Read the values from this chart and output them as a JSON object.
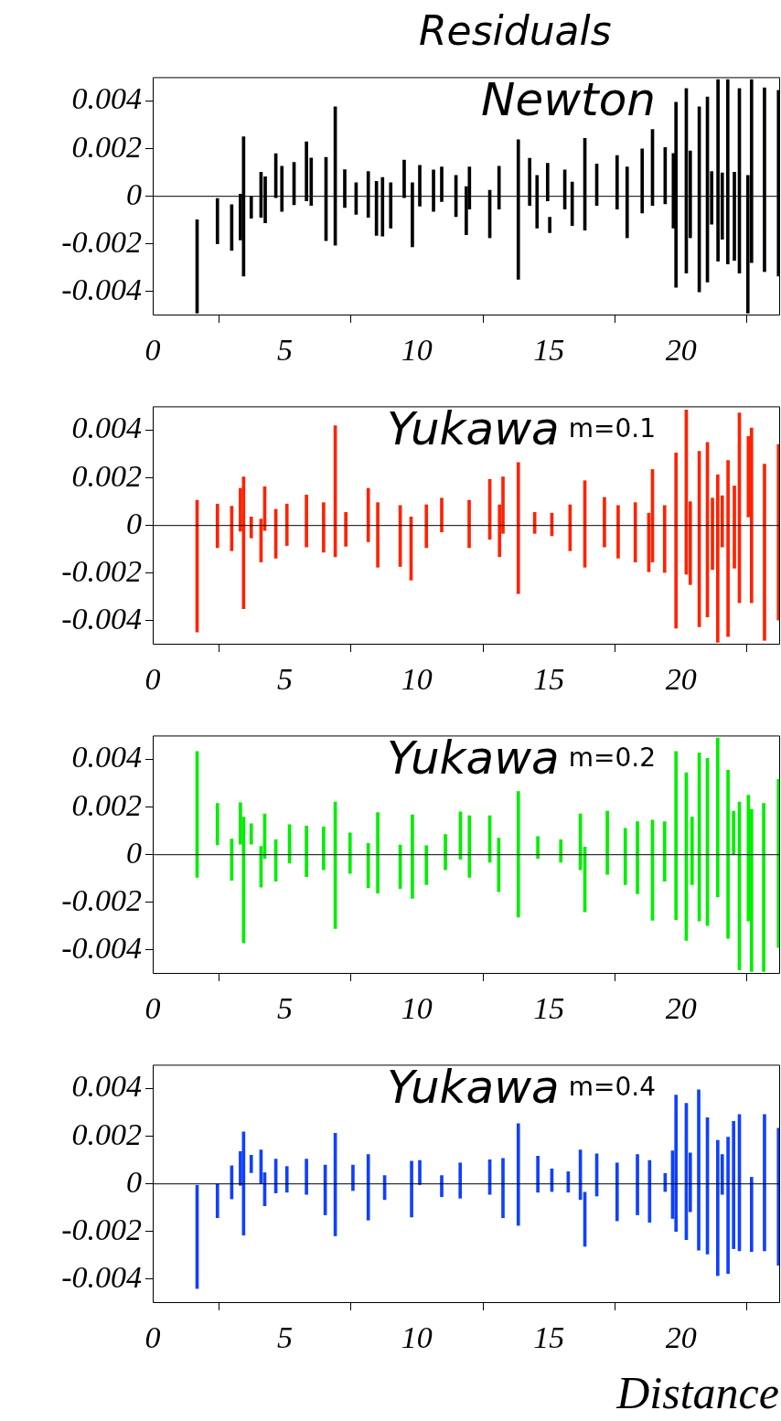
{
  "chart_data": [
    {
      "type": "bar",
      "title": "Residuals",
      "annotations": [
        "Newton"
      ],
      "color": "#000000",
      "xlim": [
        0,
        23.75
      ],
      "xticks": [
        0,
        5,
        10,
        15,
        20
      ],
      "ylim": [
        -0.005,
        0.005
      ],
      "yticks": [
        -0.004,
        -0.002,
        0,
        0.002,
        0.004
      ],
      "ref_lines": [
        {
          "axis": "y",
          "value": 0,
          "color": "#000000"
        }
      ],
      "x": [
        1.68,
        2.45,
        2.99,
        3.32,
        3.44,
        3.73,
        4.1,
        4.26,
        4.66,
        4.89,
        5.35,
        5.82,
        6.0,
        6.56,
        6.91,
        7.27,
        7.7,
        8.16,
        8.47,
        8.7,
        9.01,
        9.52,
        9.83,
        10.11,
        10.63,
        10.94,
        11.48,
        11.87,
        11.99,
        12.76,
        13.11,
        13.84,
        14.27,
        14.55,
        14.95,
        15.03,
        15.6,
        15.88,
        16.36,
        16.81,
        17.58,
        17.96,
        18.53,
        18.92,
        19.4,
        19.71,
        19.81,
        20.2,
        20.35,
        20.69,
        21.0,
        21.16,
        21.4,
        21.56,
        21.77,
        22.02,
        22.21,
        22.53,
        22.67,
        23.16,
        23.69
      ],
      "base": [
        -0.0049,
        -0.00199,
        -0.00227,
        -0.00183,
        -0.00335,
        -0.00092,
        -0.00088,
        -0.00111,
        -6e-05,
        -0.00063,
        -0.00035,
        -0.00019,
        -0.00038,
        -0.00186,
        -0.00205,
        -0.00047,
        -0.00076,
        -0.00088,
        -0.00164,
        -0.00167,
        -0.00133,
        -6e-05,
        -0.00212,
        -0.00041,
        -0.00063,
        -0.00022,
        -0.00085,
        -0.00161,
        -0.00054,
        -0.00174,
        -0.00054,
        -0.00348,
        -0.00038,
        -0.00133,
        -0.00019,
        -0.00152,
        -0.00054,
        -0.00123,
        -0.00142,
        -0.00038,
        -0.00054,
        -0.00174,
        -0.0007,
        -0.00038,
        -0.00032,
        -0.00133,
        -0.00382,
        -0.00322,
        -0.00174,
        -0.00401,
        -0.0036,
        -0.00117,
        -0.00272,
        -0.0018,
        -0.00284,
        -0.00269,
        -0.00322,
        -0.0049,
        -0.00278,
        -0.00316,
        -0.00335
      ],
      "values": [
        0.00392,
        0.0019,
        0.00192,
        0.00192,
        0.00585,
        0.00092,
        0.00189,
        0.00193,
        0.00185,
        0.00189,
        0.00177,
        0.00248,
        0.00199,
        0.0035,
        0.00581,
        0.00159,
        0.00133,
        0.00192,
        0.00227,
        0.00246,
        0.0019,
        0.00158,
        0.00269,
        0.00171,
        0.00174,
        0.00145,
        0.00173,
        0.00202,
        0.00177,
        0.00199,
        0.0018,
        0.00585,
        0.00198,
        0.00221,
        0.00158,
        0.00064,
        0.00165,
        0.00183,
        0.00385,
        0.00174,
        0.00225,
        0.00297,
        0.00269,
        0.00319,
        0.00237,
        0.00313,
        0.00777,
        0.00774,
        0.00364,
        0.00777,
        0.00777,
        0.00221,
        0.00762,
        0.00278,
        0.00774,
        0.0037,
        0.00774,
        0.00578,
        0.00768,
        0.00771,
        0.0078
      ]
    },
    {
      "type": "bar",
      "annotations": [
        "Yukawa",
        "m=0.1"
      ],
      "color": "#ff2200",
      "xlim": [
        0,
        23.75
      ],
      "xticks": [
        0,
        5,
        10,
        15,
        20
      ],
      "ylim": [
        -0.005,
        0.005
      ],
      "yticks": [
        -0.004,
        -0.002,
        0,
        0.002,
        0.004
      ],
      "ref_lines": [
        {
          "axis": "y",
          "value": 0,
          "color": "#000000"
        }
      ],
      "x": [
        1.68,
        2.45,
        2.99,
        3.32,
        3.44,
        3.73,
        4.1,
        4.24,
        4.66,
        5.08,
        5.82,
        6.47,
        6.91,
        7.31,
        8.16,
        8.52,
        9.37,
        9.78,
        10.36,
        10.94,
        11.98,
        12.76,
        13.13,
        13.26,
        13.84,
        14.46,
        15.11,
        15.8,
        16.36,
        17.1,
        17.62,
        18.27,
        18.78,
        18.92,
        19.38,
        19.81,
        20.2,
        20.35,
        20.69,
        21.0,
        21.19,
        21.39,
        21.56,
        21.78,
        22.02,
        22.21,
        22.55,
        22.67,
        23.16,
        23.69
      ],
      "base": [
        -0.00447,
        -0.00093,
        -0.00106,
        -0.00024,
        -0.00349,
        -0.00052,
        -0.00153,
        -0.00021,
        -0.00137,
        -0.00084,
        -0.0009,
        -0.00112,
        -0.00131,
        -0.00087,
        -0.00068,
        -0.00175,
        -0.00172,
        -0.00229,
        -0.00093,
        -0.00027,
        -0.00093,
        -0.00058,
        -0.00131,
        -0.00033,
        -0.00286,
        -0.00033,
        -0.00043,
        -0.00106,
        -0.00175,
        -0.0009,
        -0.00137,
        -0.00153,
        -0.00194,
        -0.00153,
        -0.00197,
        -0.00431,
        -0.00204,
        -0.00248,
        -0.00425,
        -0.00384,
        -0.00185,
        -0.0049,
        -0.0009,
        -0.00466,
        -0.00179,
        -0.00324,
        0.00036,
        -0.00324,
        -0.00482,
        -0.00397
      ],
      "values": [
        0.00553,
        0.00183,
        0.00187,
        0.0018,
        0.00553,
        0.00088,
        0.0018,
        0.00184,
        0.00205,
        0.00174,
        0.00218,
        0.00208,
        0.0055,
        0.00142,
        0.00224,
        0.00271,
        0.00256,
        0.00265,
        0.0018,
        0.00142,
        0.00199,
        0.00252,
        0.00218,
        0.00237,
        0.0055,
        0.00088,
        0.00095,
        0.00193,
        0.00363,
        0.00208,
        0.00221,
        0.00249,
        0.00246,
        0.00388,
        0.00281,
        0.00736,
        0.00689,
        0.00348,
        0.00736,
        0.00733,
        0.003,
        0.00703,
        0.00215,
        0.00739,
        0.00345,
        0.00796,
        0.00338,
        0.00733,
        0.0074,
        0.00737
      ]
    },
    {
      "type": "bar",
      "annotations": [
        "Yukawa",
        "m=0.2"
      ],
      "color": "#00ee00",
      "xlim": [
        0,
        23.75
      ],
      "xticks": [
        0,
        5,
        10,
        15,
        20
      ],
      "ylim": [
        -0.005,
        0.005
      ],
      "yticks": [
        -0.004,
        -0.002,
        0,
        0.002,
        0.004
      ],
      "ref_lines": [
        {
          "axis": "y",
          "value": 0,
          "color": "#000000"
        }
      ],
      "x": [
        1.68,
        2.45,
        2.99,
        3.32,
        3.44,
        3.73,
        4.1,
        4.24,
        4.66,
        5.18,
        5.82,
        6.47,
        6.91,
        7.47,
        8.16,
        8.52,
        9.37,
        9.83,
        10.36,
        11.08,
        11.65,
        11.99,
        12.76,
        13.1,
        13.84,
        14.58,
        15.45,
        16.19,
        16.36,
        17.21,
        17.89,
        18.35,
        18.92,
        19.38,
        19.81,
        20.2,
        20.42,
        20.69,
        21.0,
        21.39,
        21.78,
        21.99,
        22.21,
        22.55,
        22.67,
        23.13,
        23.69
      ],
      "base": [
        -0.00095,
        0.00041,
        -0.00107,
        0.00044,
        -0.0037,
        0.00044,
        -0.00136,
        -0.00016,
        -0.00111,
        -0.00035,
        -0.00092,
        -0.00063,
        -0.0031,
        -0.00079,
        -0.00139,
        -0.00161,
        -0.00142,
        -0.00183,
        -0.00126,
        -0.00063,
        -0.00019,
        -0.00095,
        -0.00032,
        -0.00155,
        -0.00262,
        -0.00016,
        -0.00032,
        -0.00063,
        -0.0024,
        -0.00082,
        -0.00126,
        -0.00164,
        -0.00275,
        -0.00111,
        -0.00272,
        -0.0036,
        -0.00126,
        -0.00278,
        -0.00297,
        -0.00177,
        -0.00351,
        3e-05,
        -0.00483,
        -0.00278,
        -0.0049,
        -0.0049,
        -0.00389
      ],
      "values": [
        0.00528,
        0.00174,
        0.00173,
        0.00174,
        0.00528,
        0.00086,
        0.00171,
        0.00187,
        0.00174,
        0.00161,
        0.00212,
        0.0018,
        0.00531,
        0.00171,
        0.00186,
        0.00338,
        0.00183,
        0.0035,
        0.00164,
        0.00148,
        0.00199,
        0.00259,
        0.00196,
        0.00225,
        0.00527,
        0.00092,
        0.00095,
        0.00234,
        0.00272,
        0.00265,
        0.00237,
        0.00303,
        0.0042,
        0.0025,
        0.00705,
        0.00704,
        0.00284,
        0.00705,
        0.00701,
        0.00667,
        0.00705,
        0.0018,
        0.00704,
        0.00528,
        0.0068,
        0.00705,
        0.00705
      ]
    },
    {
      "type": "bar",
      "xlabel": "Distance",
      "annotations": [
        "Yukawa",
        "m=0.4"
      ],
      "color": "#1040ff",
      "xlim": [
        0,
        23.75
      ],
      "xticks": [
        0,
        5,
        10,
        15,
        20
      ],
      "ylim": [
        -0.005,
        0.005
      ],
      "yticks": [
        -0.004,
        -0.002,
        0,
        0.002,
        0.004
      ],
      "ref_lines": [
        {
          "axis": "y",
          "value": 0,
          "color": "#000000"
        }
      ],
      "x": [
        1.68,
        2.45,
        2.99,
        3.32,
        3.44,
        3.73,
        4.1,
        4.24,
        4.66,
        5.08,
        5.82,
        6.53,
        6.91,
        7.58,
        8.16,
        8.78,
        9.8,
        10.11,
        10.94,
        11.64,
        12.76,
        13.26,
        13.84,
        14.58,
        15.11,
        15.73,
        16.19,
        16.36,
        16.81,
        17.58,
        18.35,
        18.81,
        19.4,
        19.68,
        19.81,
        20.2,
        20.35,
        20.67,
        21.0,
        21.39,
        21.56,
        21.78,
        21.99,
        22.21,
        22.67,
        23.16,
        23.69
      ],
      "base": [
        -0.00439,
        -0.00142,
        -0.00063,
        -6e-05,
        -0.00215,
        0.00047,
        0,
        -0.00092,
        -0.00038,
        -0.00035,
        -0.00044,
        -0.0013,
        -0.00218,
        -0.00028,
        -0.00152,
        -0.00066,
        -0.00139,
        -3e-05,
        -0.00054,
        -0.0006,
        -0.00044,
        -0.00142,
        -0.00174,
        -0.00035,
        -0.00032,
        -0.00035,
        -0.00066,
        -0.00262,
        -0.00051,
        -0.00155,
        -0.0013,
        -0.00161,
        -0.00032,
        -0.00145,
        -0.00199,
        -0.00234,
        -0.00117,
        -0.00278,
        -0.00294,
        -0.00385,
        -0.00044,
        -0.00376,
        -0.00272,
        -0.00281,
        -0.00284,
        -0.00281,
        -0.00341
      ],
      "values": [
        0.00433,
        0.00142,
        0.00139,
        0.00142,
        0.00433,
        0.00073,
        0.00142,
        0.00139,
        0.00142,
        0.00108,
        0.00148,
        0.00209,
        0.0043,
        0.00107,
        0.00275,
        0.00101,
        0.00234,
        0.00101,
        0.00089,
        0.00148,
        0.00145,
        0.00249,
        0.00427,
        0.00152,
        0.00095,
        0.00086,
        0.00208,
        0.00227,
        0.00177,
        0.00243,
        0.00253,
        0.00259,
        0.00076,
        0.00284,
        0.00572,
        0.00572,
        0.00247,
        0.00673,
        0.00572,
        0.00568,
        0.00167,
        0.00572,
        0.00534,
        0.00572,
        0.00312,
        0.00572,
        0.00575
      ]
    }
  ]
}
